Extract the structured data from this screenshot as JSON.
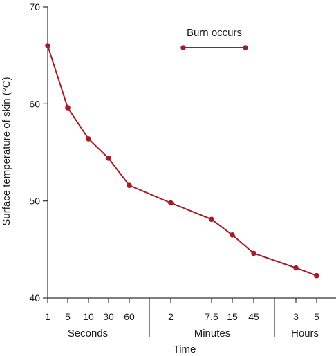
{
  "chart_data": {
    "type": "line",
    "ylabel": "Surface temperature of skin (°C)",
    "xlabel": "Time",
    "ylim": [
      40,
      70
    ],
    "yticks": [
      40,
      50,
      60,
      70
    ],
    "categories": [
      "1",
      "5",
      "10",
      "30",
      "60",
      "2",
      "7.5",
      "15",
      "45",
      "3",
      "5"
    ],
    "groups": [
      {
        "label": "Seconds",
        "ticks": [
          "1",
          "5",
          "10",
          "30",
          "60"
        ]
      },
      {
        "label": "Minutes",
        "ticks": [
          "2",
          "7.5",
          "15",
          "45"
        ]
      },
      {
        "label": "Hours",
        "ticks": [
          "3",
          "5"
        ]
      }
    ],
    "series": [
      {
        "values": [
          66,
          59.6,
          56.4,
          54.4,
          51.6,
          49.8,
          48.1,
          46.5,
          44.6,
          43.1,
          42.3
        ]
      }
    ],
    "legend": {
      "label": "Burn occurs",
      "position": "top-right"
    },
    "line_color": "#a31d24",
    "grid": false
  }
}
